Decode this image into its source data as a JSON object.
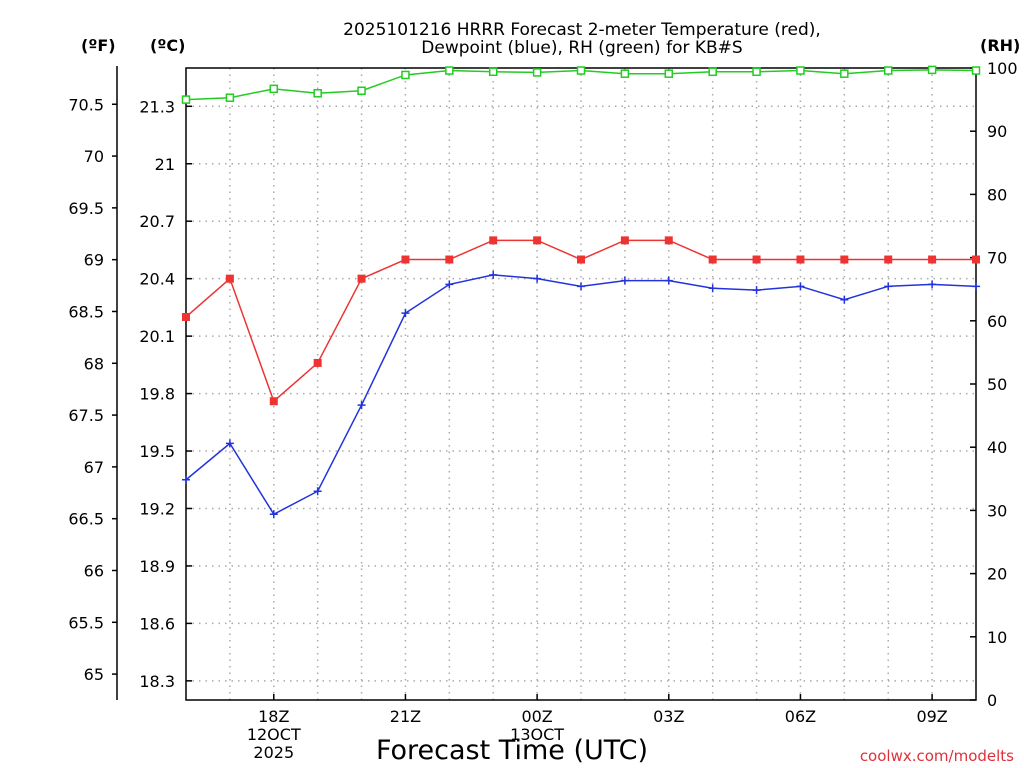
{
  "chart_data": {
    "type": "line",
    "title": [
      "2025101216 HRRR Forecast 2-meter Temperature (red),",
      "Dewpoint (blue), RH (green) for KB#S"
    ],
    "xlabel": "Forecast Time (UTC)",
    "x_ticks": [
      {
        "index": 2,
        "lines": [
          "18Z",
          "12OCT",
          "2025"
        ]
      },
      {
        "index": 5,
        "lines": [
          "21Z"
        ]
      },
      {
        "index": 8,
        "lines": [
          "00Z",
          "13OCT"
        ]
      },
      {
        "index": 11,
        "lines": [
          "03Z"
        ]
      },
      {
        "index": 14,
        "lines": [
          "06Z"
        ]
      },
      {
        "index": 17,
        "lines": [
          "09Z"
        ]
      }
    ],
    "x_range": [
      0,
      18
    ],
    "left_f_axis": {
      "unit_label": "(ºF)",
      "range": [
        64.75,
        70.85
      ],
      "ticks": [
        "65",
        "65.5",
        "66",
        "66.5",
        "67",
        "67.5",
        "68",
        "68.5",
        "69",
        "69.5",
        "70",
        "70.5"
      ]
    },
    "left_c_axis": {
      "unit_label": "(ºC)",
      "range": [
        18.2,
        21.5
      ],
      "ticks": [
        "18.3",
        "18.6",
        "18.9",
        "19.2",
        "19.5",
        "19.8",
        "20.1",
        "20.4",
        "20.7",
        "21",
        "21.3"
      ]
    },
    "right_rh_axis": {
      "unit_label": "(RH)",
      "range": [
        0,
        100
      ],
      "ticks": [
        "0",
        "10",
        "20",
        "30",
        "40",
        "50",
        "60",
        "70",
        "80",
        "90",
        "100"
      ]
    },
    "series": [
      {
        "name": "Temperature",
        "axis": "c",
        "color": "#ee3333",
        "marker": "filled-square",
        "x": [
          0,
          1,
          2,
          3,
          4,
          5,
          6,
          7,
          8,
          9,
          10,
          11,
          12,
          13,
          14,
          15,
          16,
          17,
          18
        ],
        "values": [
          20.2,
          20.4,
          19.76,
          19.96,
          20.4,
          20.5,
          20.5,
          20.6,
          20.6,
          20.5,
          20.6,
          20.6,
          20.5,
          20.5,
          20.5,
          20.5,
          20.5,
          20.5,
          20.5
        ]
      },
      {
        "name": "Dewpoint",
        "axis": "c",
        "color": "#2233dd",
        "marker": "plus",
        "x": [
          0,
          1,
          2,
          3,
          4,
          5,
          6,
          7,
          8,
          9,
          10,
          11,
          12,
          13,
          14,
          15,
          16,
          17,
          18
        ],
        "values": [
          19.35,
          19.54,
          19.17,
          19.29,
          19.74,
          20.22,
          20.37,
          20.42,
          20.4,
          20.36,
          20.39,
          20.39,
          20.35,
          20.34,
          20.36,
          20.29,
          20.36,
          20.37,
          20.36
        ]
      },
      {
        "name": "RH",
        "axis": "rh",
        "color": "#22cc22",
        "marker": "open-square",
        "x": [
          0,
          1,
          2,
          3,
          4,
          5,
          6,
          7,
          8,
          9,
          10,
          11,
          12,
          13,
          14,
          15,
          16,
          17,
          18
        ],
        "values": [
          95,
          95.3,
          96.7,
          96,
          96.4,
          98.9,
          99.6,
          99.4,
          99.3,
          99.6,
          99.1,
          99.1,
          99.4,
          99.4,
          99.6,
          99.1,
          99.6,
          99.7,
          99.6
        ]
      }
    ],
    "grid": true,
    "credit": "coolwx.com/modelts"
  }
}
